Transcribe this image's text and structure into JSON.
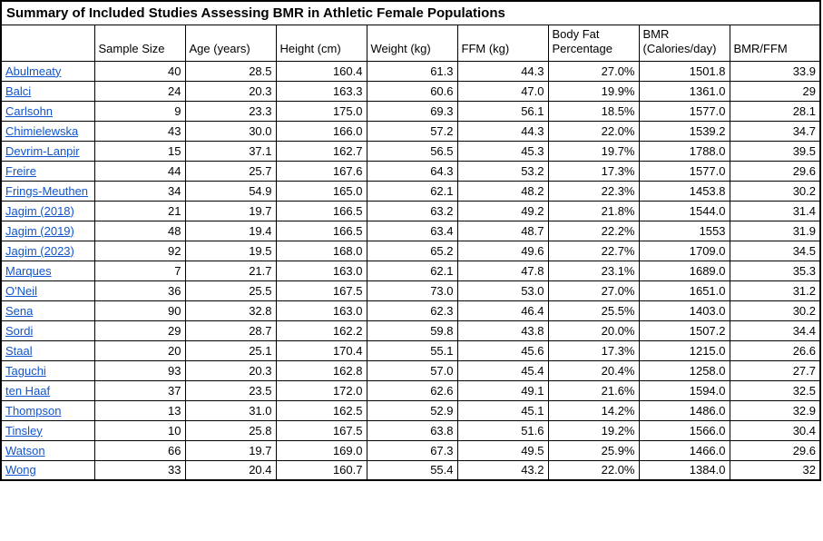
{
  "title": "Summary of Included Studies Assessing BMR in Athletic Female Populations",
  "colors": {
    "link": "#1155CC",
    "border": "#000000",
    "background": "#ffffff"
  },
  "table": {
    "columns": [
      "",
      "Sample Size",
      "Age (years)",
      "Height (cm)",
      "Weight (kg)",
      "FFM (kg)",
      "Body Fat Percentage",
      "BMR (Calories/day)",
      "BMR/FFM"
    ],
    "rows": [
      {
        "study": "Abulmeaty",
        "values": [
          "40",
          "28.5",
          "160.4",
          "61.3",
          "44.3",
          "27.0%",
          "1501.8",
          "33.9"
        ]
      },
      {
        "study": "Balci",
        "values": [
          "24",
          "20.3",
          "163.3",
          "60.6",
          "47.0",
          "19.9%",
          "1361.0",
          "29"
        ]
      },
      {
        "study": "Carlsohn",
        "values": [
          "9",
          "23.3",
          "175.0",
          "69.3",
          "56.1",
          "18.5%",
          "1577.0",
          "28.1"
        ]
      },
      {
        "study": "Chimielewska",
        "values": [
          "43",
          "30.0",
          "166.0",
          "57.2",
          "44.3",
          "22.0%",
          "1539.2",
          "34.7"
        ]
      },
      {
        "study": "Devrim-Lanpir",
        "values": [
          "15",
          "37.1",
          "162.7",
          "56.5",
          "45.3",
          "19.7%",
          "1788.0",
          "39.5"
        ]
      },
      {
        "study": "Freire",
        "values": [
          "44",
          "25.7",
          "167.6",
          "64.3",
          "53.2",
          "17.3%",
          "1577.0",
          "29.6"
        ]
      },
      {
        "study": "Frings-Meuthen",
        "values": [
          "34",
          "54.9",
          "165.0",
          "62.1",
          "48.2",
          "22.3%",
          "1453.8",
          "30.2"
        ]
      },
      {
        "study": "Jagim (2018)",
        "values": [
          "21",
          "19.7",
          "166.5",
          "63.2",
          "49.2",
          "21.8%",
          "1544.0",
          "31.4"
        ]
      },
      {
        "study": "Jagim (2019)",
        "values": [
          "48",
          "19.4",
          "166.5",
          "63.4",
          "48.7",
          "22.2%",
          "1553",
          "31.9"
        ]
      },
      {
        "study": "Jagim (2023)",
        "values": [
          "92",
          "19.5",
          "168.0",
          "65.2",
          "49.6",
          "22.7%",
          "1709.0",
          "34.5"
        ]
      },
      {
        "study": "Marques",
        "values": [
          "7",
          "21.7",
          "163.0",
          "62.1",
          "47.8",
          "23.1%",
          "1689.0",
          "35.3"
        ]
      },
      {
        "study": "O'Neil",
        "values": [
          "36",
          "25.5",
          "167.5",
          "73.0",
          "53.0",
          "27.0%",
          "1651.0",
          "31.2"
        ]
      },
      {
        "study": "Sena",
        "values": [
          "90",
          "32.8",
          "163.0",
          "62.3",
          "46.4",
          "25.5%",
          "1403.0",
          "30.2"
        ]
      },
      {
        "study": "Sordi",
        "values": [
          "29",
          "28.7",
          "162.2",
          "59.8",
          "43.8",
          "20.0%",
          "1507.2",
          "34.4"
        ]
      },
      {
        "study": "Staal",
        "values": [
          "20",
          "25.1",
          "170.4",
          "55.1",
          "45.6",
          "17.3%",
          "1215.0",
          "26.6"
        ]
      },
      {
        "study": "Taguchi",
        "values": [
          "93",
          "20.3",
          "162.8",
          "57.0",
          "45.4",
          "20.4%",
          "1258.0",
          "27.7"
        ]
      },
      {
        "study": "ten Haaf",
        "values": [
          "37",
          "23.5",
          "172.0",
          "62.6",
          "49.1",
          "21.6%",
          "1594.0",
          "32.5"
        ]
      },
      {
        "study": "Thompson",
        "values": [
          "13",
          "31.0",
          "162.5",
          "52.9",
          "45.1",
          "14.2%",
          "1486.0",
          "32.9"
        ]
      },
      {
        "study": "Tinsley",
        "values": [
          "10",
          "25.8",
          "167.5",
          "63.8",
          "51.6",
          "19.2%",
          "1566.0",
          "30.4"
        ]
      },
      {
        "study": "Watson",
        "values": [
          "66",
          "19.7",
          "169.0",
          "67.3",
          "49.5",
          "25.9%",
          "1466.0",
          "29.6"
        ]
      },
      {
        "study": "Wong",
        "values": [
          "33",
          "20.4",
          "160.7",
          "55.4",
          "43.2",
          "22.0%",
          "1384.0",
          "32"
        ]
      }
    ]
  }
}
